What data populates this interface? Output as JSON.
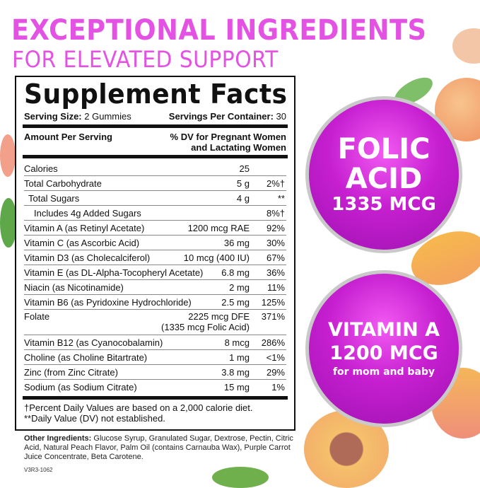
{
  "headline": {
    "line1": "EXCEPTIONAL INGREDIENTS",
    "line2": "FOR ELEVATED SUPPORT"
  },
  "facts": {
    "title": "Supplement Facts",
    "serving_size_label": "Serving Size:",
    "serving_size": "2 Gummies",
    "servings_label": "Servings Per Container:",
    "servings": "30",
    "amount_header": "Amount Per Serving",
    "dv_header_1": "% DV for Pregnant Women",
    "dv_header_2": "and Lactating Women",
    "rows": [
      {
        "name": "Calories",
        "amount": "25",
        "dv": ""
      },
      {
        "name": "Total Carbohydrate",
        "amount": "5 g",
        "dv": "2%†"
      },
      {
        "name": "Total Sugars",
        "amount": "4 g",
        "dv": "**"
      },
      {
        "name": "Includes 4g Added Sugars",
        "amount": "",
        "dv": "8%†"
      },
      {
        "name": "Vitamin A (as Retinyl Acetate)",
        "amount": "1200 mcg RAE",
        "dv": "92%"
      },
      {
        "name": "Vitamin C (as Ascorbic Acid)",
        "amount": "36 mg",
        "dv": "30%"
      },
      {
        "name": "Vitamin D3 (as Cholecalciferol)",
        "amount": "10 mcg (400 IU)",
        "dv": "67%"
      },
      {
        "name": "Vitamin E (as DL-Alpha-Tocopheryl Acetate)",
        "amount": "6.8 mg",
        "dv": "36%"
      },
      {
        "name": "Niacin (as Nicotinamide)",
        "amount": "2 mg",
        "dv": "11%"
      },
      {
        "name": "Vitamin B6 (as Pyridoxine Hydrochloride)",
        "amount": "2.5 mg",
        "dv": "125%"
      },
      {
        "name": "Folate",
        "amount": "2225 mcg DFE",
        "amount2": "(1335 mcg Folic Acid)",
        "dv": "371%"
      },
      {
        "name": "Vitamin B12 (as Cyanocobalamin)",
        "amount": "8 mcg",
        "dv": "286%"
      },
      {
        "name": "Choline (as Choline Bitartrate)",
        "amount": "1 mg",
        "dv": "<1%"
      },
      {
        "name": "Zinc (from Zinc Citrate)",
        "amount": "3.8 mg",
        "dv": "29%"
      },
      {
        "name": "Sodium (as Sodium Citrate)",
        "amount": "15 mg",
        "dv": "1%"
      }
    ],
    "footnote1": "†Percent Daily Values are based on a 2,000 calorie diet.",
    "footnote2": "**Daily Value (DV) not established."
  },
  "other_ingredients": {
    "label": "Other Ingredients:",
    "text": " Glucose Syrup, Granulated Sugar, Dextrose, Pectin, Citric Acid, Natural Peach Flavor, Palm Oil (contains Carnauba Wax), Purple Carrot Juice Concentrate, Beta Carotene."
  },
  "code": "V3R3-1062",
  "badge_folic": {
    "line1": "FOLIC",
    "line2": "ACID",
    "line3": "1335 MCG"
  },
  "badge_vita": {
    "line1": "VITAMIN A",
    "line2": "1200 MCG",
    "line3": "for mom and baby"
  },
  "colors": {
    "accent": "#e452e4",
    "badge": "#c61fd0",
    "peach": "#f6b27a",
    "leaf": "#5fa84a"
  }
}
